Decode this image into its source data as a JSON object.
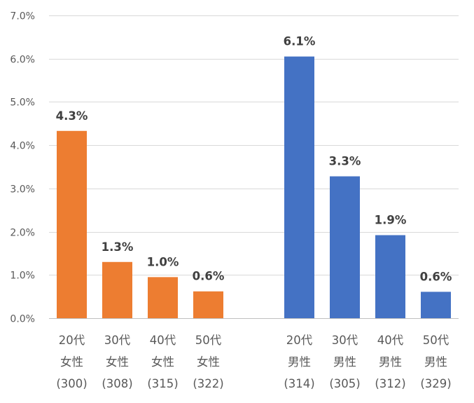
{
  "chart_data": {
    "type": "bar",
    "ylim": [
      0,
      7.0
    ],
    "ytick_step": 1.0,
    "ytick_format": "percent-1dp",
    "grid": true,
    "categories": [
      {
        "lines": [
          "20代",
          "女性",
          "(300)"
        ],
        "value": 4.3,
        "label": "4.3%",
        "color": "#ED7D31"
      },
      {
        "lines": [
          "30代",
          "女性",
          "(308)"
        ],
        "value": 1.3,
        "label": "1.3%",
        "color": "#ED7D31"
      },
      {
        "lines": [
          "40代",
          "女性",
          "(315)"
        ],
        "value": 1.0,
        "label": "1.0%",
        "color": "#ED7D31"
      },
      {
        "lines": [
          "50代",
          "女性",
          "(322)"
        ],
        "value": 0.6,
        "label": "0.6%",
        "color": "#ED7D31"
      },
      null,
      {
        "lines": [
          "20代",
          "男性",
          "(314)"
        ],
        "value": 6.1,
        "label": "6.1%",
        "color": "#4472C4"
      },
      {
        "lines": [
          "30代",
          "男性",
          "(305)"
        ],
        "value": 3.3,
        "label": "3.3%",
        "color": "#4472C4"
      },
      {
        "lines": [
          "40代",
          "男性",
          "(312)"
        ],
        "value": 1.9,
        "label": "1.9%",
        "color": "#4472C4"
      },
      {
        "lines": [
          "50代",
          "男性",
          "(329)"
        ],
        "value": 0.6,
        "label": "0.6%",
        "color": "#4472C4"
      }
    ],
    "exact_values": [
      4.33,
      1.3,
      0.95,
      0.62,
      null,
      6.05,
      3.28,
      1.92,
      0.61
    ]
  }
}
